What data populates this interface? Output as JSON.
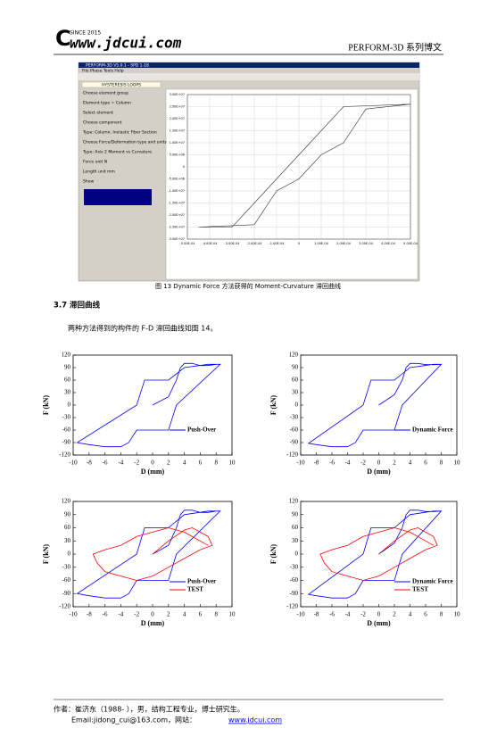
{
  "header": {
    "since": "SINCE 2015",
    "site": "www.jdcui.com",
    "series": "PERFORM-3D 系列博文"
  },
  "figure13": {
    "window_title": "PERFORM-3D V5.0.1 - SPD 1-18",
    "menu": "File  Phase  Tools  Help",
    "panel_title": "HYSTERESIS LOOPS",
    "panel_texts": [
      "Choose element group",
      "Element type = Column",
      "Select element",
      "Choose component",
      "Type: Column, Inelastic Fiber Section",
      "Choose Force/Deformation type and units",
      "Type: Axis 2 Moment vs Curvature",
      "Force unit  N",
      "Length unit  mm",
      "Show"
    ],
    "chart": {
      "type": "line",
      "xlim": [
        -0.0005,
        0.0005
      ],
      "xticks": [
        {
          "value": -0.0005,
          "label": "-5.00E-04"
        },
        {
          "value": -0.0004,
          "label": "-4.00E-04"
        },
        {
          "value": -0.0003,
          "label": "-3.00E-04"
        },
        {
          "value": -0.0002,
          "label": "-2.00E-04"
        },
        {
          "value": -0.0001,
          "label": "-1.00E-04"
        },
        0,
        {
          "value": 0.0001,
          "label": "1.00E-04"
        },
        {
          "value": 0.0002,
          "label": "2.00E-04"
        },
        {
          "value": 0.0003,
          "label": "3.00E-04"
        },
        {
          "value": 0.0004,
          "label": "4.00E-04"
        },
        {
          "value": 0.0005,
          "label": "5.00E-04"
        }
      ],
      "ylim": [
        -30000000,
        30000000
      ],
      "yticks": [
        {
          "value": 30000000,
          "label": "3.00E+07"
        },
        {
          "value": 25000000,
          "label": "2.50E+07"
        },
        {
          "value": 20000000,
          "label": "2.00E+07"
        },
        {
          "value": 15000000,
          "label": "1.50E+07"
        },
        {
          "value": 10000000,
          "label": "1.00E+07"
        },
        {
          "value": 5000000,
          "label": "5.00E+06"
        },
        0,
        {
          "value": -5000000,
          "label": "-5.00E+06"
        },
        {
          "value": -10000000,
          "label": "-1.00E+07"
        },
        {
          "value": -15000000,
          "label": "-1.50E+07"
        },
        {
          "value": -20000000,
          "label": "-2.00E+07"
        },
        {
          "value": -25000000,
          "label": "-2.50E+07"
        },
        {
          "value": -30000000,
          "label": "-3.00E+07"
        }
      ],
      "grid": true,
      "series": [
        {
          "color": "#333333",
          "x": [
            -0.00045,
            -0.0002,
            -0.0001,
            0,
            0.0001,
            0.0002,
            0.0003,
            0.0005,
            0.0002,
            0.0001,
            0,
            -0.0001,
            -0.0002,
            -0.0003,
            -0.00045
          ],
          "y": [
            -25000000,
            -24000000,
            -10000000,
            -5000000,
            5000000,
            10000000,
            24000000,
            26000000,
            25000000,
            15000000,
            5000000,
            -5000000,
            -15000000,
            -25000000,
            -25000000
          ]
        }
      ]
    }
  },
  "caption13": "图 13 Dynamic Force 方法获得的 Moment-Curvature 滞回曲线",
  "section": "3.7 滞回曲线",
  "paragraph": "两种方法得到的构件的 F-D 滞回曲线如图 14。",
  "charts": [
    {
      "type": "line",
      "xlabel": "D (mm)",
      "ylabel": "F (kN)",
      "xlim": [
        -10,
        10
      ],
      "xticks": [
        -10,
        -8,
        -6,
        -4,
        -2,
        0,
        2,
        4,
        6,
        8,
        10
      ],
      "ylim": [
        -120,
        120
      ],
      "yticks": [
        120,
        90,
        60,
        30,
        0,
        -30,
        -60,
        -90,
        -120
      ],
      "legend": "lower right",
      "series": [
        {
          "name": "Push-Over",
          "color": "#0000ff",
          "x": [
            0,
            2,
            3,
            3.5,
            4,
            5,
            6,
            7,
            8,
            8.5,
            3,
            2.5,
            2,
            0,
            -2,
            -3,
            -4,
            -6,
            -8,
            -9.5,
            -2,
            -1.5,
            -1,
            0,
            2,
            4,
            7,
            8.5
          ],
          "y": [
            0,
            20,
            60,
            90,
            100,
            100,
            95,
            95,
            98,
            98,
            0,
            -30,
            -60,
            -60,
            -60,
            -90,
            -100,
            -100,
            -95,
            -90,
            0,
            30,
            60,
            60,
            60,
            90,
            98,
            98
          ]
        }
      ]
    },
    {
      "type": "line",
      "xlabel": "D (mm)",
      "ylabel": "F (kN)",
      "xlim": [
        -10,
        10
      ],
      "xticks": [
        -10,
        -8,
        -6,
        -4,
        -2,
        0,
        2,
        4,
        6,
        8,
        10
      ],
      "ylim": [
        -120,
        120
      ],
      "yticks": [
        120,
        90,
        60,
        30,
        0,
        -30,
        -60,
        -90,
        -120
      ],
      "legend": "lower right",
      "series": [
        {
          "name": "Dynamic Force",
          "color": "#0000ff",
          "x": [
            0,
            2,
            3,
            3.5,
            4,
            5,
            6,
            7,
            8,
            8,
            3,
            2.5,
            2,
            0,
            -2,
            -3,
            -4,
            -6,
            -8,
            -9,
            -2,
            -1.5,
            -1,
            0,
            2,
            4,
            7,
            8
          ],
          "y": [
            0,
            25,
            60,
            90,
            100,
            100,
            97,
            97,
            98,
            98,
            0,
            -30,
            -60,
            -60,
            -60,
            -90,
            -100,
            -100,
            -95,
            -92,
            0,
            30,
            60,
            60,
            60,
            90,
            98,
            98
          ]
        }
      ]
    },
    {
      "type": "line",
      "xlabel": "D (mm)",
      "ylabel": "F (kN)",
      "xlim": [
        -10,
        10
      ],
      "xticks": [
        -10,
        -8,
        -6,
        -4,
        -2,
        0,
        2,
        4,
        6,
        8,
        10
      ],
      "ylim": [
        -120,
        120
      ],
      "yticks": [
        120,
        90,
        60,
        30,
        0,
        -30,
        -60,
        -90,
        -120
      ],
      "legend": "lower right",
      "series": [
        {
          "name": "Push-Over",
          "color": "#0000ff",
          "x": [
            0,
            2,
            3,
            3.5,
            4,
            5,
            6,
            7,
            8,
            8.5,
            3,
            2.5,
            2,
            0,
            -2,
            -3,
            -4,
            -6,
            -8,
            -9.5,
            -2,
            -1.5,
            -1,
            0,
            2,
            4,
            7,
            8.5
          ],
          "y": [
            0,
            20,
            60,
            90,
            100,
            100,
            95,
            95,
            98,
            98,
            0,
            -30,
            -60,
            -60,
            -60,
            -90,
            -100,
            -100,
            -95,
            -90,
            0,
            30,
            60,
            60,
            60,
            90,
            98,
            98
          ]
        },
        {
          "name": "TEST",
          "color": "#ff0000",
          "x": [
            0,
            2,
            4,
            5,
            6,
            7,
            7.5,
            6,
            4,
            2,
            0,
            -2,
            -4,
            -6,
            -7,
            -7.5,
            -6,
            -4,
            -2,
            0,
            2,
            4,
            6,
            7
          ],
          "y": [
            0,
            30,
            55,
            60,
            50,
            40,
            20,
            10,
            -10,
            -30,
            -50,
            -60,
            -50,
            -40,
            -20,
            0,
            10,
            20,
            40,
            50,
            60,
            50,
            30,
            20
          ]
        }
      ]
    },
    {
      "type": "line",
      "xlabel": "D (mm)",
      "ylabel": "F (kN)",
      "xlim": [
        -10,
        10
      ],
      "xticks": [
        -10,
        -8,
        -6,
        -4,
        -2,
        0,
        2,
        4,
        6,
        8,
        10
      ],
      "ylim": [
        -120,
        120
      ],
      "yticks": [
        120,
        90,
        60,
        30,
        0,
        -30,
        -60,
        -90,
        -120
      ],
      "legend": "lower right",
      "series": [
        {
          "name": "Dynamic Force",
          "color": "#0000ff",
          "x": [
            0,
            2,
            3,
            3.5,
            4,
            5,
            6,
            7,
            8,
            8,
            3,
            2.5,
            2,
            0,
            -2,
            -3,
            -4,
            -6,
            -8,
            -9,
            -2,
            -1.5,
            -1,
            0,
            2,
            4,
            7,
            8
          ],
          "y": [
            0,
            25,
            60,
            90,
            100,
            100,
            97,
            97,
            98,
            98,
            0,
            -30,
            -60,
            -60,
            -60,
            -90,
            -100,
            -100,
            -95,
            -92,
            0,
            30,
            60,
            60,
            60,
            90,
            98,
            98
          ]
        },
        {
          "name": "TEST",
          "color": "#ff0000",
          "x": [
            0,
            2,
            4,
            5,
            6,
            7,
            7.5,
            6,
            4,
            2,
            0,
            -2,
            -4,
            -6,
            -7,
            -7.5,
            -6,
            -4,
            -2,
            0,
            2,
            4,
            6,
            7
          ],
          "y": [
            0,
            30,
            55,
            60,
            50,
            40,
            20,
            10,
            -10,
            -30,
            -50,
            -60,
            -50,
            -40,
            -20,
            0,
            10,
            20,
            40,
            50,
            60,
            50,
            30,
            20
          ]
        }
      ]
    }
  ],
  "footer": {
    "author": "作者：崔济东（1988- ），男，结构工程专业，博士研究生。",
    "email": "Email:jidong_cui@163.com，网站：",
    "link": "www.jdcui.com"
  }
}
